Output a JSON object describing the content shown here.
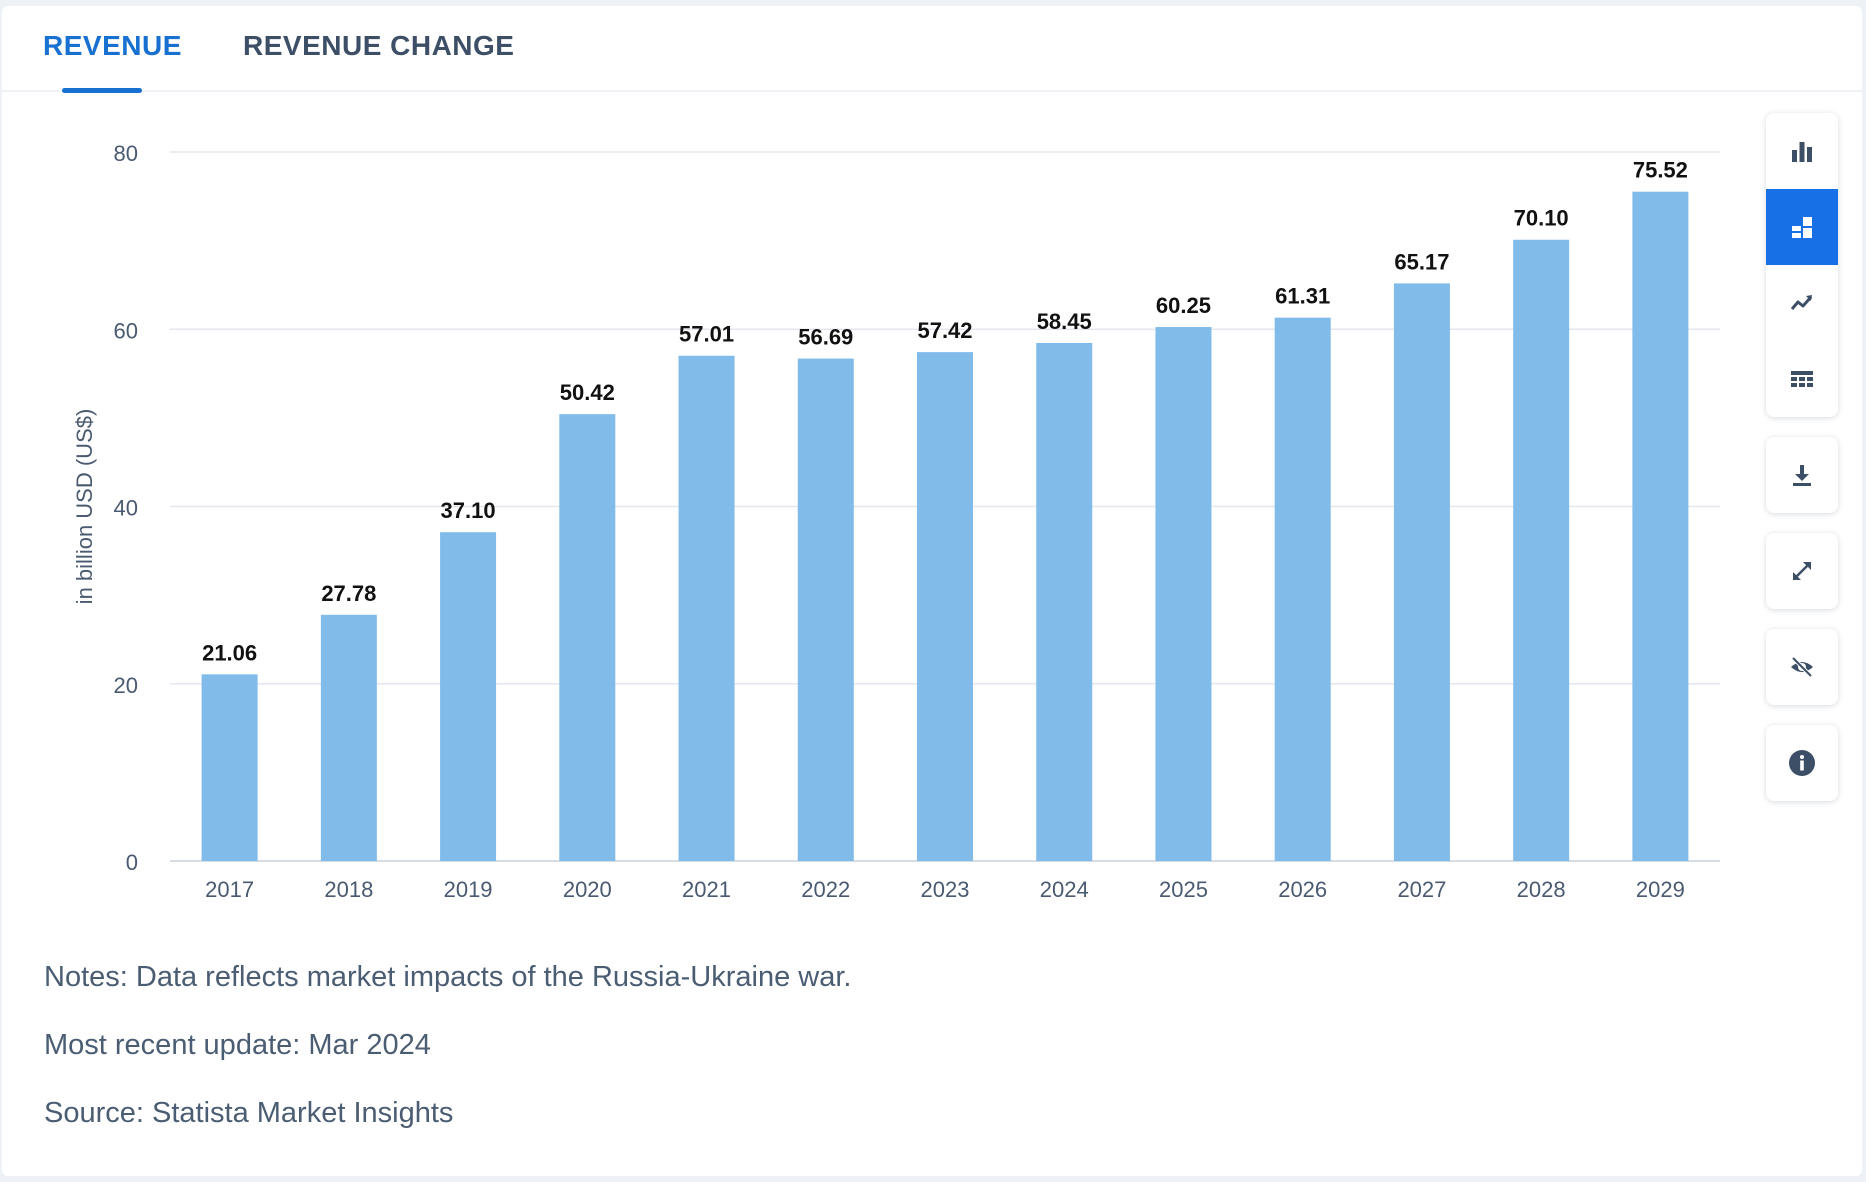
{
  "tabs": [
    {
      "label": "REVENUE",
      "active": true
    },
    {
      "label": "REVENUE CHANGE",
      "active": false
    }
  ],
  "toolbar": {
    "group_icons": [
      "bar-chart-icon",
      "stacked-chart-icon",
      "trend-line-icon",
      "table-grid-icon"
    ],
    "active_index": 1,
    "single_icons": [
      "download-icon",
      "expand-icon",
      "hide-eye-icon",
      "info-icon"
    ]
  },
  "notes": {
    "note": "Notes: Data reflects market impacts of the Russia-Ukraine war.",
    "update": "Most recent update: Mar 2024",
    "source": "Source: Statista Market Insights"
  },
  "chart_data": {
    "type": "bar",
    "categories": [
      "2017",
      "2018",
      "2019",
      "2020",
      "2021",
      "2022",
      "2023",
      "2024",
      "2025",
      "2026",
      "2027",
      "2028",
      "2029"
    ],
    "values": [
      21.06,
      27.78,
      37.1,
      50.42,
      57.01,
      56.69,
      57.42,
      58.45,
      60.25,
      61.31,
      65.17,
      70.1,
      75.52
    ],
    "value_labels": [
      "21.06",
      "27.78",
      "37.10",
      "50.42",
      "57.01",
      "56.69",
      "57.42",
      "58.45",
      "60.25",
      "61.31",
      "65.17",
      "70.10",
      "75.52"
    ],
    "ylabel": "in billion USD (US$)",
    "ylim": [
      0,
      80
    ],
    "yticks": [
      0,
      20,
      40,
      60,
      80
    ],
    "grid": true,
    "bar_color": "#80bbea"
  }
}
